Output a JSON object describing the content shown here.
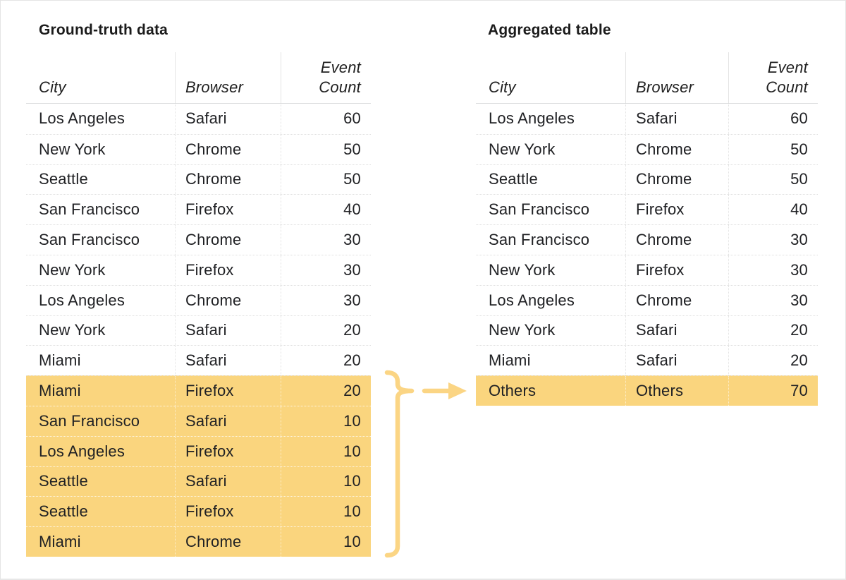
{
  "left_table": {
    "title": "Ground-truth data",
    "columns": [
      "City",
      "Browser",
      "Event Count"
    ],
    "rows": [
      {
        "city": "Los Angeles",
        "browser": "Safari",
        "count": "60",
        "highlight": false
      },
      {
        "city": "New York",
        "browser": "Chrome",
        "count": "50",
        "highlight": false
      },
      {
        "city": "Seattle",
        "browser": "Chrome",
        "count": "50",
        "highlight": false
      },
      {
        "city": "San Francisco",
        "browser": "Firefox",
        "count": "40",
        "highlight": false
      },
      {
        "city": "San Francisco",
        "browser": "Chrome",
        "count": "30",
        "highlight": false
      },
      {
        "city": "New York",
        "browser": "Firefox",
        "count": "30",
        "highlight": false
      },
      {
        "city": "Los Angeles",
        "browser": "Chrome",
        "count": "30",
        "highlight": false
      },
      {
        "city": "New York",
        "browser": "Safari",
        "count": "20",
        "highlight": false
      },
      {
        "city": "Miami",
        "browser": "Safari",
        "count": "20",
        "highlight": false
      },
      {
        "city": "Miami",
        "browser": "Firefox",
        "count": "20",
        "highlight": true
      },
      {
        "city": "San Francisco",
        "browser": "Safari",
        "count": "10",
        "highlight": true
      },
      {
        "city": "Los Angeles",
        "browser": "Firefox",
        "count": "10",
        "highlight": true
      },
      {
        "city": "Seattle",
        "browser": "Safari",
        "count": "10",
        "highlight": true
      },
      {
        "city": "Seattle",
        "browser": "Firefox",
        "count": "10",
        "highlight": true
      },
      {
        "city": "Miami",
        "browser": "Chrome",
        "count": "10",
        "highlight": true
      }
    ]
  },
  "right_table": {
    "title": "Aggregated table",
    "columns": [
      "City",
      "Browser",
      "Event Count"
    ],
    "rows": [
      {
        "city": "Los Angeles",
        "browser": "Safari",
        "count": "60",
        "highlight": false
      },
      {
        "city": "New York",
        "browser": "Chrome",
        "count": "50",
        "highlight": false
      },
      {
        "city": "Seattle",
        "browser": "Chrome",
        "count": "50",
        "highlight": false
      },
      {
        "city": "San Francisco",
        "browser": "Firefox",
        "count": "40",
        "highlight": false
      },
      {
        "city": "San Francisco",
        "browser": "Chrome",
        "count": "30",
        "highlight": false
      },
      {
        "city": "New York",
        "browser": "Firefox",
        "count": "30",
        "highlight": false
      },
      {
        "city": "Los Angeles",
        "browser": "Chrome",
        "count": "30",
        "highlight": false
      },
      {
        "city": "New York",
        "browser": "Safari",
        "count": "20",
        "highlight": false
      },
      {
        "city": "Miami",
        "browser": "Safari",
        "count": "20",
        "highlight": false
      },
      {
        "city": "Others",
        "browser": "Others",
        "count": "70",
        "highlight": true
      }
    ]
  },
  "annotation": {
    "brace_icon": "curly-brace",
    "arrow_icon": "right-arrow",
    "highlight_color": "#fad57e",
    "accent_color": "#fbd584"
  }
}
